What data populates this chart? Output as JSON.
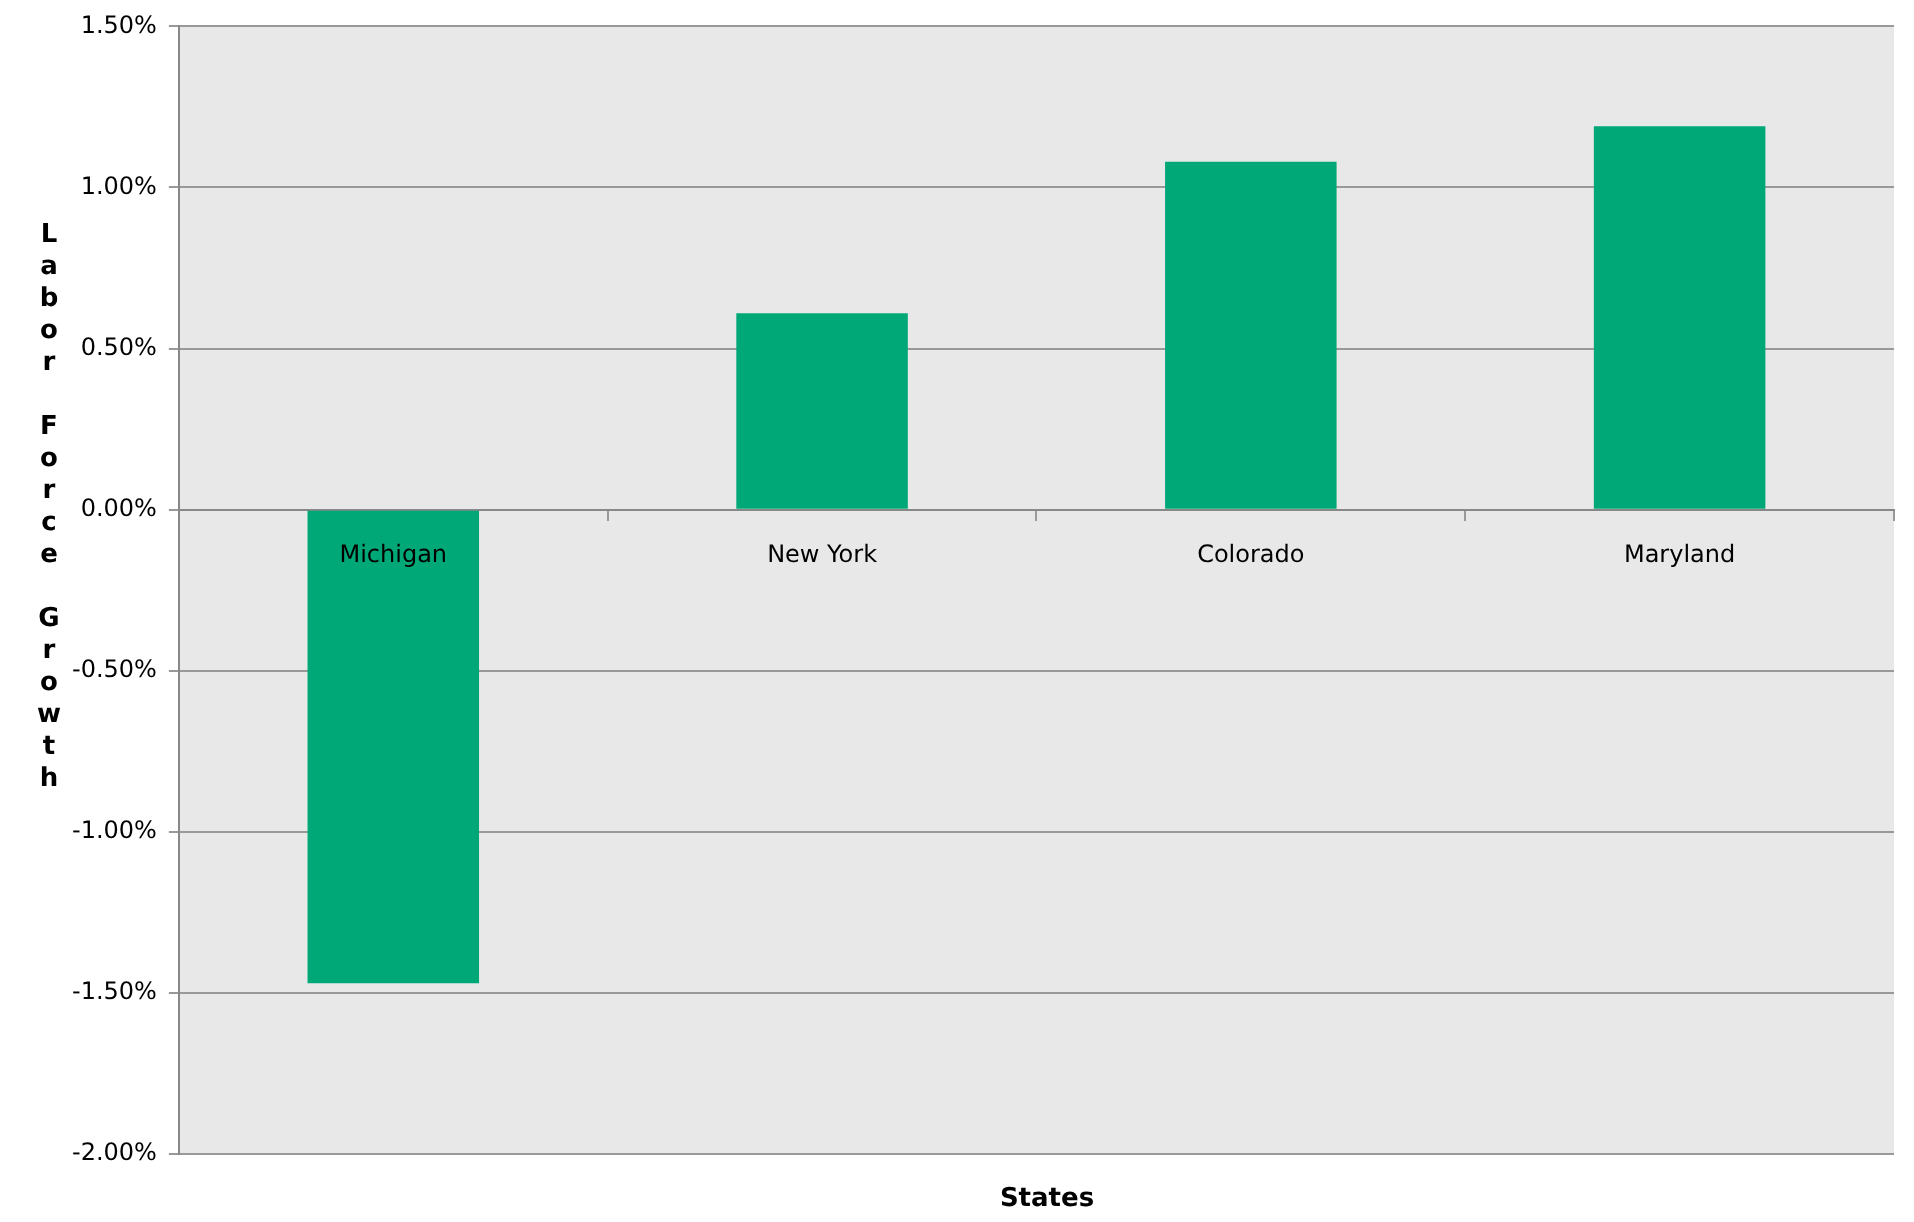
{
  "chart_data": {
    "type": "bar",
    "xlabel": "States",
    "ylabel": "Labor Force Growth",
    "categories": [
      "Michigan",
      "New York",
      "Colorado",
      "Maryland"
    ],
    "values": [
      -1.47,
      0.61,
      1.08,
      1.19
    ],
    "color": "#00a878",
    "ylim": [
      -2,
      1.5
    ],
    "yticks": [
      {
        "value": -2,
        "label": "-2.00%"
      },
      {
        "value": -1.5,
        "label": "-1.50%"
      },
      {
        "value": -1,
        "label": "-1.00%"
      },
      {
        "value": -0.5,
        "label": "-0.50%"
      },
      {
        "value": 0,
        "label": "0.00%"
      },
      {
        "value": 0.5,
        "label": "0.50%"
      },
      {
        "value": 1,
        "label": "1.00%"
      },
      {
        "value": 1.5,
        "label": "1.50%"
      }
    ],
    "grid": "y",
    "legend": false
  }
}
